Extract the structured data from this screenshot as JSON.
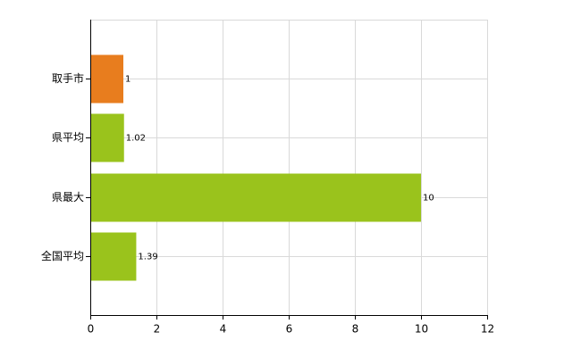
{
  "chart_data": {
    "type": "barh",
    "categories": [
      "取手市",
      "県平均",
      "県最大",
      "全国平均"
    ],
    "values": [
      1,
      1.02,
      10,
      1.39
    ],
    "colors": [
      "#e87d1e",
      "#9ac31c",
      "#9ac31c",
      "#9ac31c"
    ],
    "xlim": [
      0,
      12
    ],
    "xticks": [
      0,
      2,
      4,
      6,
      8,
      10,
      12
    ],
    "grid": true
  }
}
